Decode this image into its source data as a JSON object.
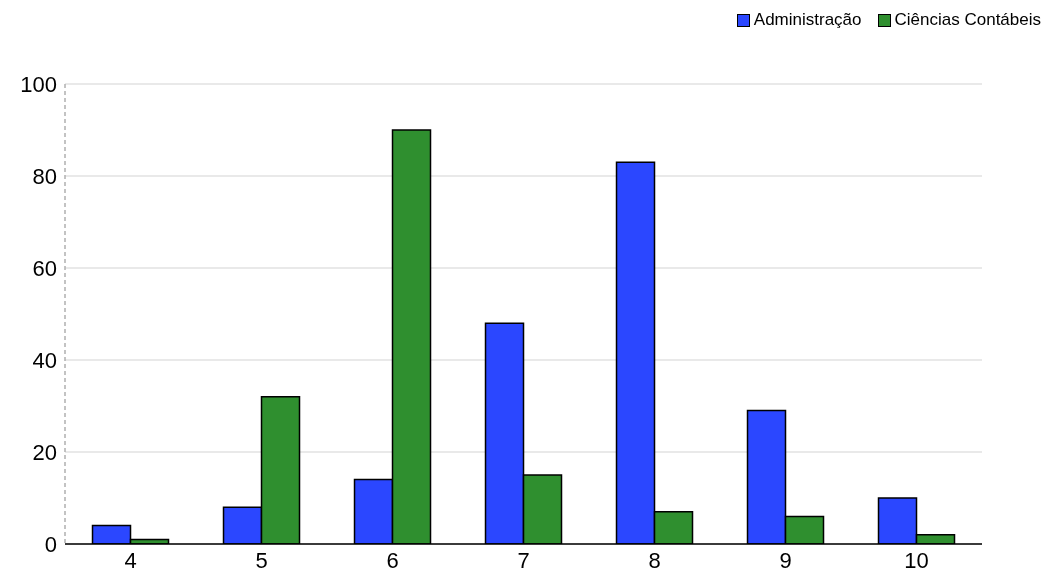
{
  "chart_data": {
    "type": "bar",
    "categories": [
      "4",
      "5",
      "6",
      "7",
      "8",
      "9",
      "10"
    ],
    "series": [
      {
        "name": "Administração",
        "color": "#2b47ff",
        "values": [
          4,
          8,
          14,
          48,
          83,
          29,
          10
        ]
      },
      {
        "name": "Ciências Contábeis",
        "color": "#2f8f2f",
        "values": [
          1,
          32,
          90,
          15,
          7,
          6,
          2
        ]
      }
    ],
    "ylim": [
      0,
      100
    ],
    "yticks": [
      0,
      20,
      40,
      60,
      80,
      100
    ],
    "grid": "y",
    "legend": "top right"
  }
}
